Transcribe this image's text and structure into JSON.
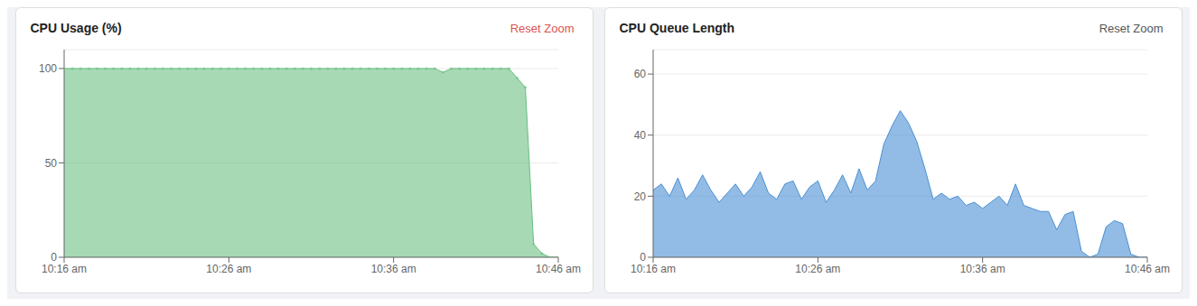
{
  "chart_data": [
    {
      "type": "area",
      "title": "CPU Usage (%)",
      "annotations": [
        {
          "text": "Reset Zoom",
          "color": "#d9534f"
        }
      ],
      "x": [
        0,
        1,
        2,
        3,
        4,
        5,
        6,
        7,
        8,
        9,
        10,
        11,
        12,
        13,
        14,
        15,
        16,
        17,
        18,
        19,
        20,
        21,
        22,
        23,
        24,
        25,
        26,
        27,
        28,
        29,
        30,
        31,
        32,
        33,
        34,
        35,
        36,
        37,
        38,
        39,
        40,
        41,
        42,
        43,
        44,
        45,
        46,
        47,
        48,
        49,
        50,
        51,
        52,
        53,
        54,
        55,
        56,
        57,
        58,
        59,
        60
      ],
      "values": [
        100,
        100,
        100,
        100,
        100,
        100,
        100,
        100,
        100,
        100,
        100,
        100,
        100,
        100,
        100,
        100,
        100,
        100,
        100,
        100,
        100,
        100,
        100,
        100,
        100,
        100,
        100,
        100,
        100,
        100,
        100,
        100,
        100,
        100,
        100,
        100,
        100,
        100,
        100,
        100,
        100,
        100,
        100,
        100,
        100,
        100,
        98,
        100,
        100,
        100,
        100,
        100,
        100,
        100,
        100,
        95,
        90,
        7,
        2,
        0,
        0
      ],
      "color": "#6abf82",
      "marker": "o",
      "xlim": [
        0,
        60
      ],
      "xticks": [
        {
          "value": 0,
          "label": "10:16 am"
        },
        {
          "value": 20,
          "label": "10:26 am"
        },
        {
          "value": 40,
          "label": "10:36 am"
        },
        {
          "value": 60,
          "label": "10:46 am"
        }
      ],
      "ylim": [
        0,
        110
      ],
      "yticks": [
        0,
        50,
        100
      ],
      "grid": true
    },
    {
      "type": "area",
      "title": "CPU Queue Length",
      "annotations": [
        {
          "text": "Reset Zoom",
          "color": "#555555"
        }
      ],
      "x": [
        0,
        1,
        2,
        3,
        4,
        5,
        6,
        7,
        8,
        9,
        10,
        11,
        12,
        13,
        14,
        15,
        16,
        17,
        18,
        19,
        20,
        21,
        22,
        23,
        24,
        25,
        26,
        27,
        28,
        29,
        30,
        31,
        32,
        33,
        34,
        35,
        36,
        37,
        38,
        39,
        40,
        41,
        42,
        43,
        44,
        45,
        46,
        47,
        48,
        49,
        50,
        51,
        52,
        53,
        54,
        55,
        56,
        57,
        58,
        59,
        60
      ],
      "values": [
        22,
        24,
        20,
        26,
        19,
        22,
        27,
        22,
        18,
        21,
        24,
        20,
        23,
        28,
        21,
        19,
        24,
        25,
        19,
        23,
        25,
        18,
        22,
        27,
        21,
        29,
        22,
        25,
        37,
        43,
        48,
        44,
        38,
        29,
        19,
        21,
        19,
        20,
        17,
        18,
        16,
        18,
        20,
        17,
        24,
        17,
        16,
        15,
        15,
        9,
        14,
        15,
        2,
        0,
        1,
        10,
        12,
        11,
        1,
        0,
        0
      ],
      "color": "#4a90d4",
      "xlim": [
        0,
        60
      ],
      "xticks": [
        {
          "value": 0,
          "label": "10:16 am"
        },
        {
          "value": 20,
          "label": "10:26 am"
        },
        {
          "value": 40,
          "label": "10:36 am"
        },
        {
          "value": 60,
          "label": "10:46 am"
        }
      ],
      "ylim": [
        0,
        68
      ],
      "yticks": [
        0,
        20,
        40,
        60
      ],
      "grid": true
    }
  ]
}
